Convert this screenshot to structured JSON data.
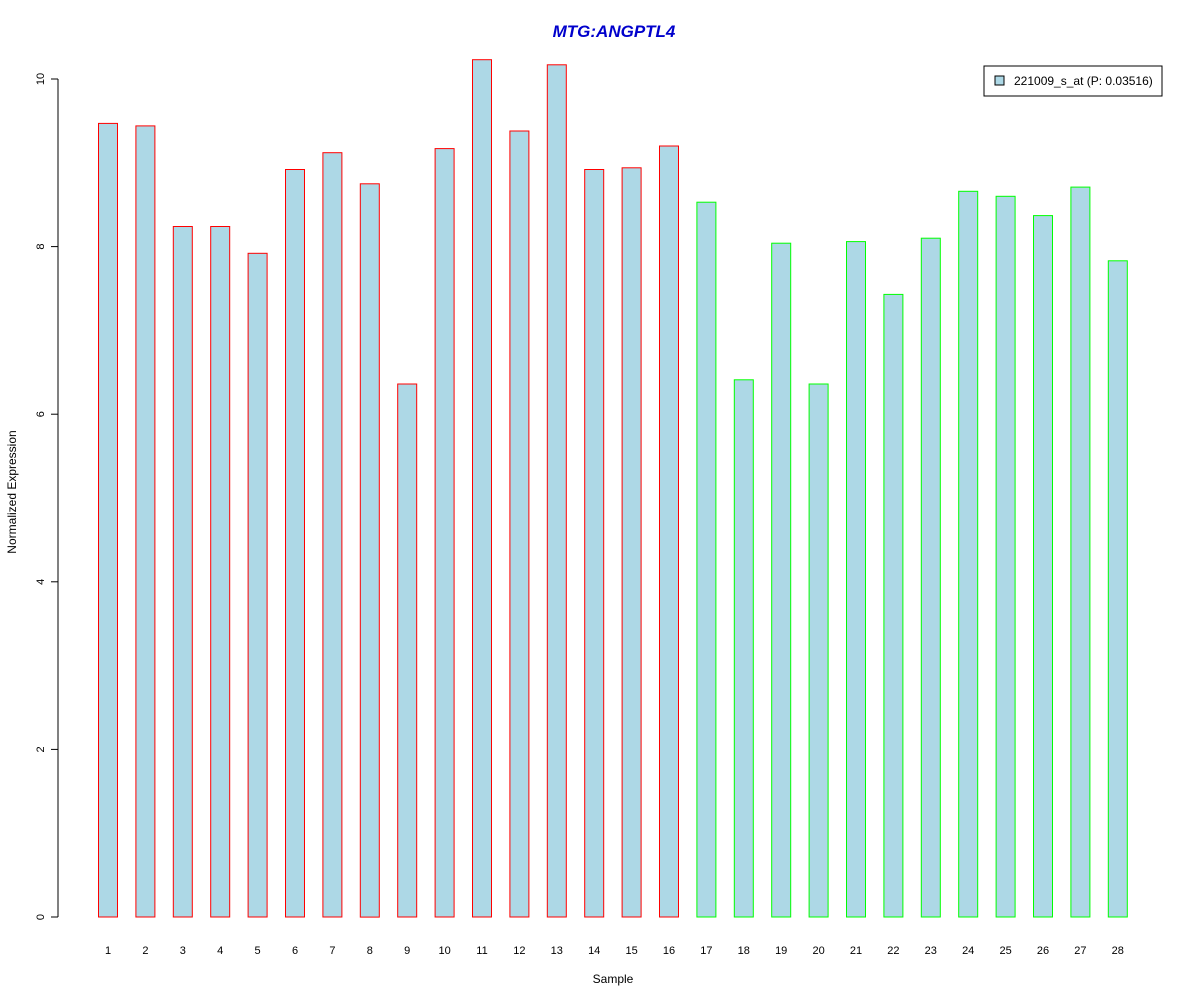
{
  "chart_data": {
    "type": "bar",
    "title": "MTG:ANGPTL4",
    "xlabel": "Sample",
    "ylabel": "Normalized Expression",
    "categories": [
      "1",
      "2",
      "3",
      "4",
      "5",
      "6",
      "7",
      "8",
      "9",
      "10",
      "11",
      "12",
      "13",
      "14",
      "15",
      "16",
      "17",
      "18",
      "19",
      "20",
      "21",
      "22",
      "23",
      "24",
      "25",
      "26",
      "27",
      "28"
    ],
    "series": [
      {
        "name": "221009_s_at (P: 0.03516)",
        "values": [
          9.47,
          9.44,
          8.24,
          8.24,
          7.92,
          8.92,
          9.12,
          8.75,
          6.36,
          9.17,
          10.23,
          9.38,
          10.17,
          8.92,
          8.94,
          9.2,
          8.53,
          6.41,
          8.04,
          6.36,
          8.06,
          7.43,
          8.1,
          8.66,
          8.6,
          8.37,
          8.71,
          7.83
        ]
      }
    ],
    "group_outline": [
      "red",
      "red",
      "red",
      "red",
      "red",
      "red",
      "red",
      "red",
      "red",
      "red",
      "red",
      "red",
      "red",
      "red",
      "red",
      "red",
      "green",
      "green",
      "green",
      "green",
      "green",
      "green",
      "green",
      "green",
      "green",
      "green",
      "green",
      "green"
    ],
    "yticks": [
      0,
      2,
      4,
      6,
      8,
      10
    ],
    "ylim": [
      0,
      10.3
    ],
    "grid": false,
    "legend_position": "top-right"
  },
  "colors": {
    "title": "#0000cc",
    "bar_fill": "#add8e6",
    "outline_group_1": "#ff0000",
    "outline_group_2": "#00ff00",
    "axis": "#000000"
  }
}
